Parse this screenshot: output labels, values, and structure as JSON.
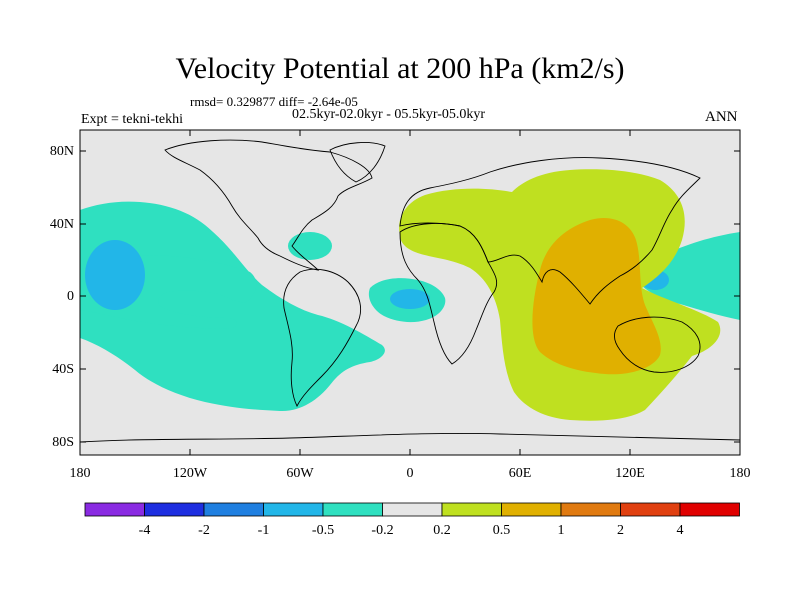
{
  "title": "Velocity Potential at 200 hPa (km2/s)",
  "stats_line": "rmsd= 0.329877 diff= -2.64e-05",
  "period_line": "02.5kyr-02.0kyr - 05.5kyr-05.0kyr",
  "experiment_label": "Expt = tekni-tekhi",
  "season_label": "ANN",
  "lat_labels": [
    "80N",
    "40N",
    "0",
    "40S",
    "80S"
  ],
  "lon_labels": [
    "180",
    "120W",
    "60W",
    "0",
    "60E",
    "120E",
    "180"
  ],
  "colorbar": {
    "labels": [
      "-4",
      "-2",
      "-1",
      "-0.5",
      "-0.2",
      "0.2",
      "0.5",
      "1",
      "2",
      "4"
    ],
    "colors": [
      "#8a2be2",
      "#1e2ee0",
      "#1f7fe0",
      "#22b6e8",
      "#2fe0c0",
      "#e6e6e6",
      "#bfe020",
      "#e0b000",
      "#e07a10",
      "#e04010",
      "#e00000"
    ]
  },
  "field_colors": {
    "ocean_background": "#e6e6e6",
    "negative_weak": "#2fe0c0",
    "negative_moderate": "#22b6e8",
    "positive_weak": "#bfe020",
    "positive_moderate": "#e0b000"
  }
}
